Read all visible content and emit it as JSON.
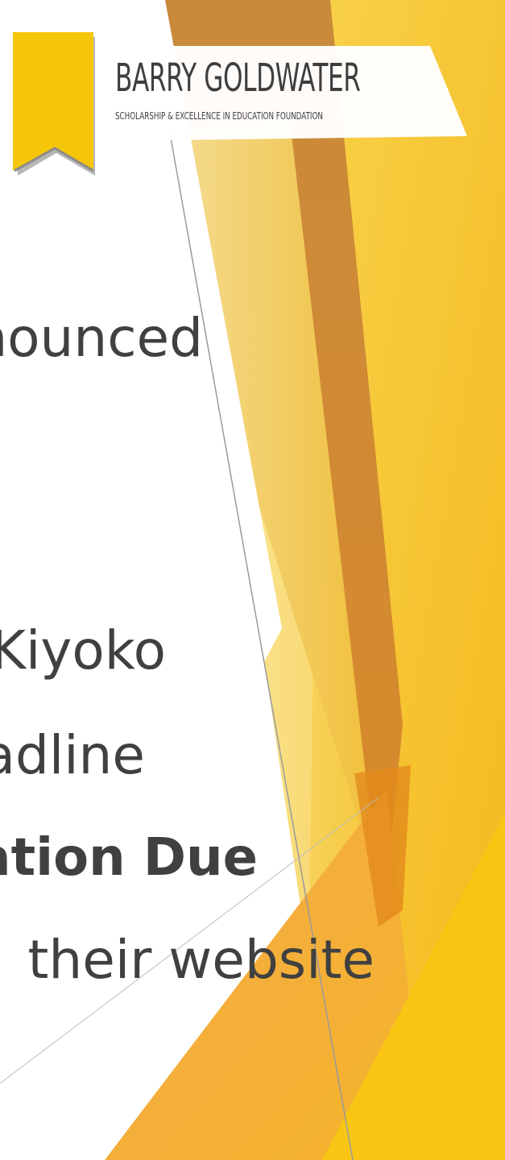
{
  "logo": {
    "title": "BARRY GOLDWATER",
    "subtitle": "SCHOLARSHIP & EXCELLENCE IN EDUCATION FOUNDATION",
    "bookmark-icon": "ribbon-bookmark-icon"
  },
  "body_lines": [
    "nounced",
    "Kiyoko",
    "adline",
    "ation Due",
    "their website"
  ],
  "colors": {
    "background": "#ffffff",
    "gold": "#f5c518",
    "orange": "#e8a33a",
    "amber": "#d9892b",
    "text": "#404040",
    "logo_text": "#3e3e3e"
  }
}
